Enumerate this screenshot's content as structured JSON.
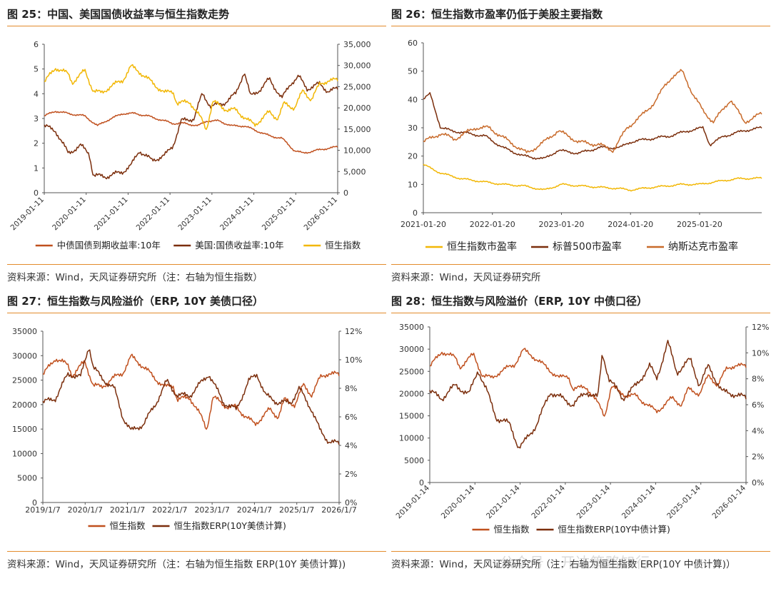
{
  "colors": {
    "cn": "#c0501e",
    "us": "#7b2e0c",
    "hsi": "#f2b705",
    "sp": "#7b2e0c",
    "ndx": "#c86a2a",
    "accent": "#e38b2c"
  },
  "chart_data": [
    {
      "type": "line",
      "panel": "fig25",
      "title": "图 25：中国、美国国债收益率与恒生指数走势",
      "x_tick_labels": [
        "2019-01-11",
        "2020-01-11",
        "2021-01-11",
        "2022-01-11",
        "2023-01-11",
        "2024-01-11",
        "2025-01-11",
        "2026-01-11"
      ],
      "x_range": [
        2019.03,
        2026.03
      ],
      "y_left": {
        "range": [
          0,
          6
        ],
        "ticks": [
          "0",
          "1",
          "2",
          "3",
          "4",
          "5",
          "6"
        ]
      },
      "y_right": {
        "range": [
          0,
          35000
        ],
        "ticks": [
          "0",
          "5,000",
          "10,000",
          "15,000",
          "20,000",
          "25,000",
          "30,000",
          "35,000"
        ]
      },
      "series": [
        {
          "name": "中债国债到期收益率:10年",
          "axis": "left",
          "color": "#c0501e",
          "x": [
            2019.03,
            2019.3,
            2019.6,
            2020.0,
            2020.3,
            2020.5,
            2020.9,
            2021.2,
            2021.5,
            2021.9,
            2022.1,
            2022.4,
            2022.7,
            2022.9,
            2023.2,
            2023.5,
            2023.8,
            2024.1,
            2024.4,
            2024.7,
            2025.0,
            2025.2,
            2025.5,
            2025.8,
            2026.03
          ],
          "y": [
            3.1,
            3.3,
            3.2,
            3.1,
            2.7,
            2.9,
            3.2,
            3.2,
            3.1,
            2.9,
            2.8,
            2.8,
            2.7,
            2.9,
            2.9,
            2.7,
            2.7,
            2.5,
            2.3,
            2.2,
            1.7,
            1.6,
            1.7,
            1.8,
            1.85
          ]
        },
        {
          "name": "美国:国债收益率:10年",
          "axis": "left",
          "color": "#7b2e0c",
          "x": [
            2019.03,
            2019.3,
            2019.6,
            2019.9,
            2020.1,
            2020.2,
            2020.5,
            2020.9,
            2021.1,
            2021.3,
            2021.6,
            2021.9,
            2022.1,
            2022.3,
            2022.6,
            2022.8,
            2023.0,
            2023.3,
            2023.6,
            2023.8,
            2023.95,
            2024.2,
            2024.4,
            2024.7,
            2024.9,
            2025.1,
            2025.3,
            2025.6,
            2025.8,
            2026.03
          ],
          "y": [
            2.7,
            2.5,
            1.6,
            1.9,
            1.6,
            0.7,
            0.65,
            0.85,
            1.1,
            1.7,
            1.3,
            1.5,
            1.9,
            2.9,
            3.0,
            4.0,
            3.5,
            3.6,
            4.0,
            4.9,
            3.9,
            4.2,
            4.6,
            3.8,
            4.4,
            4.7,
            4.2,
            4.4,
            4.1,
            4.2
          ]
        },
        {
          "name": "恒生指数",
          "axis": "right",
          "color": "#f2b705",
          "x": [
            2019.03,
            2019.3,
            2019.6,
            2019.7,
            2020.0,
            2020.2,
            2020.4,
            2020.6,
            2020.9,
            2021.1,
            2021.3,
            2021.6,
            2021.9,
            2022.1,
            2022.2,
            2022.5,
            2022.8,
            2022.9,
            2023.05,
            2023.4,
            2023.6,
            2023.9,
            2024.05,
            2024.4,
            2024.6,
            2024.75,
            2025.0,
            2025.2,
            2025.4,
            2025.6,
            2025.8,
            2026.03
          ],
          "y": [
            26000,
            29500,
            28000,
            26000,
            28800,
            24000,
            23500,
            25000,
            26500,
            29800,
            28500,
            26000,
            23500,
            24000,
            21000,
            21500,
            17000,
            15000,
            21500,
            19500,
            19500,
            17000,
            16000,
            19000,
            17500,
            21000,
            20000,
            24000,
            22000,
            25500,
            26500,
            26500
          ]
        }
      ],
      "legend": [
        "中债国债到期收益率:10年",
        "美国:国债收益率:10年",
        "恒生指数"
      ]
    },
    {
      "type": "line",
      "panel": "fig26",
      "title": "图 26：恒生指数市盈率仍低于美股主要指数",
      "x_tick_labels": [
        "2021-01-20",
        "2022-01-20",
        "2023-01-20",
        "2024-01-20",
        "2025-01-20"
      ],
      "x_range": [
        2021.05,
        2025.95
      ],
      "y_left": {
        "range": [
          0,
          60
        ],
        "ticks": [
          "0",
          "10",
          "20",
          "30",
          "40",
          "50",
          "60"
        ]
      },
      "series": [
        {
          "name": "恒生指数市盈率",
          "color": "#f2b705",
          "x": [
            2021.05,
            2021.3,
            2021.6,
            2021.9,
            2022.2,
            2022.5,
            2022.8,
            2023.05,
            2023.3,
            2023.6,
            2023.9,
            2024.05,
            2024.3,
            2024.6,
            2024.8,
            2025.05,
            2025.3,
            2025.6,
            2025.95
          ],
          "y": [
            17,
            14,
            12,
            11,
            10,
            9.5,
            8,
            10,
            9.5,
            9,
            8.5,
            8,
            8.8,
            9.5,
            10,
            10,
            11,
            12,
            12.2
          ]
        },
        {
          "name": "标普500市盈率",
          "color": "#7b2e0c",
          "x": [
            2021.05,
            2021.15,
            2021.3,
            2021.45,
            2021.7,
            2021.95,
            2022.2,
            2022.5,
            2022.8,
            2023.0,
            2023.3,
            2023.6,
            2023.9,
            2024.05,
            2024.3,
            2024.6,
            2024.9,
            2025.1,
            2025.2,
            2025.4,
            2025.7,
            2025.95
          ],
          "y": [
            40,
            42,
            30,
            29,
            28,
            27,
            23,
            20,
            19,
            22,
            21,
            23,
            23,
            25,
            26,
            27,
            29,
            30,
            24,
            27,
            29,
            30
          ]
        },
        {
          "name": "纳斯达克市盈率",
          "color": "#c86a2a",
          "x": [
            2021.05,
            2021.3,
            2021.5,
            2021.8,
            2022.0,
            2022.3,
            2022.55,
            2022.8,
            2023.0,
            2023.3,
            2023.6,
            2023.8,
            2024.0,
            2024.2,
            2024.4,
            2024.55,
            2024.65,
            2024.8,
            2024.95,
            2025.1,
            2025.25,
            2025.5,
            2025.7,
            2025.95
          ],
          "y": [
            25,
            28,
            26,
            30,
            30,
            25,
            21,
            25,
            29,
            25,
            24,
            22,
            30,
            34,
            39,
            45,
            48,
            50,
            42,
            36,
            32,
            40,
            32,
            35
          ]
        }
      ],
      "legend": [
        "恒生指数市盈率",
        "标普500市盈率",
        "纳斯达克市盈率"
      ]
    },
    {
      "type": "line",
      "panel": "fig27",
      "title": "图 27：恒生指数与风险溢价（ERP, 10Y 美债口径）",
      "x_tick_labels": [
        "2019/1/7",
        "2020/1/7",
        "2021/1/7",
        "2022/1/7",
        "2023/1/7",
        "2024/1/7",
        "2025/1/7",
        "2026/1/7"
      ],
      "x_range": [
        2019.0,
        2026.05
      ],
      "y_left": {
        "range": [
          0,
          35000
        ],
        "ticks": [
          "0",
          "5000",
          "10000",
          "15000",
          "20000",
          "25000",
          "30000",
          "35000"
        ]
      },
      "y_right": {
        "range": [
          0,
          12
        ],
        "ticks": [
          "0%",
          "2%",
          "4%",
          "6%",
          "8%",
          "10%",
          "12%"
        ]
      },
      "series": [
        {
          "name": "恒生指数",
          "axis": "left",
          "color": "#c0501e",
          "x": [
            2019.0,
            2019.3,
            2019.6,
            2019.7,
            2020.0,
            2020.2,
            2020.4,
            2020.6,
            2020.9,
            2021.1,
            2021.3,
            2021.6,
            2021.9,
            2022.1,
            2022.2,
            2022.5,
            2022.8,
            2022.9,
            2023.05,
            2023.4,
            2023.6,
            2023.9,
            2024.05,
            2024.4,
            2024.6,
            2024.75,
            2025.0,
            2025.2,
            2025.4,
            2025.6,
            2025.8,
            2026.05
          ],
          "y": [
            26000,
            29500,
            28000,
            26000,
            28800,
            24000,
            23500,
            25000,
            26500,
            29800,
            28500,
            26000,
            23500,
            24000,
            21000,
            21500,
            17000,
            15000,
            21500,
            19500,
            19500,
            17000,
            16000,
            19000,
            17500,
            21000,
            20000,
            24000,
            22000,
            25500,
            26500,
            26000
          ]
        },
        {
          "name": "恒生指数ERP(10Y美债计算)",
          "axis": "right",
          "color": "#7b2e0c",
          "x": [
            2019.0,
            2019.3,
            2019.6,
            2019.9,
            2020.1,
            2020.2,
            2020.4,
            2020.7,
            2020.9,
            2021.1,
            2021.4,
            2021.7,
            2021.95,
            2022.2,
            2022.5,
            2022.8,
            2022.95,
            2023.3,
            2023.6,
            2023.9,
            2024.1,
            2024.3,
            2024.6,
            2024.9,
            2025.1,
            2025.4,
            2025.6,
            2025.8,
            2026.05
          ],
          "y": [
            7,
            7.3,
            9,
            8.8,
            11,
            9.5,
            8.7,
            8,
            6,
            5,
            5.5,
            7,
            8.5,
            7.5,
            7.5,
            8.5,
            9,
            7,
            6.5,
            8.5,
            9,
            7.5,
            7,
            7,
            8,
            6.5,
            5,
            4.3,
            4.1
          ]
        }
      ],
      "legend": [
        "恒生指数",
        "恒生指数ERP(10Y美债计算)"
      ]
    },
    {
      "type": "line",
      "panel": "fig28",
      "title": "图 28：恒生指数与风险溢价（ERP, 10Y 中债口径）",
      "x_tick_labels": [
        "2019-01-14",
        "2020-01-14",
        "2021-01-14",
        "2022-01-14",
        "2023-01-14",
        "2024-01-14",
        "2025-01-14",
        "2026-01-14"
      ],
      "x_range": [
        2019.03,
        2026.03
      ],
      "y_left": {
        "range": [
          0,
          35000
        ],
        "ticks": [
          "0",
          "5000",
          "10000",
          "15000",
          "20000",
          "25000",
          "30000",
          "35000"
        ]
      },
      "y_right": {
        "range": [
          0,
          12
        ],
        "ticks": [
          "0%",
          "2%",
          "4%",
          "6%",
          "8%",
          "10%",
          "12%"
        ]
      },
      "series": [
        {
          "name": "恒生指数",
          "axis": "left",
          "color": "#c0501e",
          "x": [
            2019.03,
            2019.3,
            2019.6,
            2019.7,
            2020.0,
            2020.2,
            2020.4,
            2020.6,
            2020.9,
            2021.1,
            2021.3,
            2021.6,
            2021.9,
            2022.1,
            2022.2,
            2022.5,
            2022.8,
            2022.9,
            2023.05,
            2023.4,
            2023.6,
            2023.9,
            2024.05,
            2024.4,
            2024.6,
            2024.75,
            2025.0,
            2025.2,
            2025.4,
            2025.6,
            2025.8,
            2026.03
          ],
          "y": [
            26000,
            29500,
            28000,
            26000,
            28800,
            24000,
            23500,
            25000,
            26500,
            29800,
            28500,
            26000,
            23500,
            24000,
            21000,
            21500,
            17000,
            15000,
            21500,
            19500,
            19500,
            17000,
            16000,
            19000,
            17500,
            21000,
            20000,
            24000,
            22000,
            25500,
            26500,
            26000
          ]
        },
        {
          "name": "恒生指数ERP(10Y中债计算)",
          "axis": "right",
          "color": "#7b2e0c",
          "x": [
            2019.03,
            2019.3,
            2019.6,
            2019.9,
            2020.1,
            2020.3,
            2020.5,
            2020.8,
            2021.0,
            2021.1,
            2021.4,
            2021.7,
            2021.95,
            2022.2,
            2022.5,
            2022.75,
            2022.85,
            2023.0,
            2023.3,
            2023.6,
            2023.9,
            2024.05,
            2024.3,
            2024.5,
            2024.8,
            2025.0,
            2025.2,
            2025.5,
            2025.8,
            2026.03
          ],
          "y": [
            7,
            6.5,
            7.5,
            6.8,
            8.7,
            7,
            5,
            4.5,
            2.7,
            3,
            4.5,
            7,
            6.5,
            6,
            7,
            6.5,
            10,
            8,
            6.5,
            7.5,
            9,
            8,
            10.8,
            8.5,
            9.5,
            7.5,
            9,
            7,
            6.8,
            6.5
          ]
        }
      ],
      "legend": [
        "恒生指数",
        "恒生指数ERP(10Y中债计算)"
      ]
    }
  ],
  "sources": {
    "fig25": "资料来源：Wind，天风证券研究所（注：右轴为恒生指数）",
    "fig26": "资料来源：Wind，天风证券研究所",
    "fig27": "资料来源：Wind，天风证券研究所（注：右轴为恒生指数 ERP(10Y 美债计算))",
    "fig28": "资料来源：Wind，天风证券研究所（注：右轴为恒生指数 ERP(10Y 中债计算)）"
  },
  "watermark": "公众号 · 开达策略知行"
}
